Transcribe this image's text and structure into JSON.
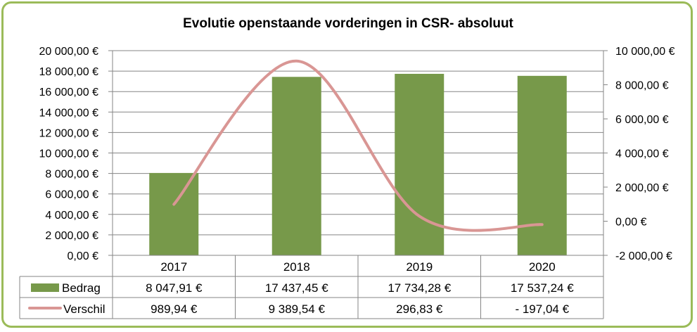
{
  "chart_data": {
    "type": "bar",
    "title": "Evolutie openstaande vorderingen in CSR- absoluut",
    "categories": [
      "2017",
      "2018",
      "2019",
      "2020"
    ],
    "series": [
      {
        "name": "Bedrag",
        "type": "bar",
        "axis": "left",
        "color": "#77994a",
        "values": [
          8047.91,
          17437.45,
          17734.28,
          17537.24
        ],
        "labels": [
          "8 047,91 €",
          "17 437,45 €",
          "17 734,28 €",
          "17 537,24 €"
        ]
      },
      {
        "name": "Verschil",
        "type": "line",
        "axis": "right",
        "color": "#d99694",
        "values": [
          989.94,
          9389.54,
          296.83,
          -197.04
        ],
        "labels": [
          "989,94 €",
          "9 389,54 €",
          "296,83 €",
          "- 197,04 €"
        ]
      }
    ],
    "y_left": {
      "range": [
        0,
        20000
      ],
      "ticks": [
        0,
        2000,
        4000,
        6000,
        8000,
        10000,
        12000,
        14000,
        16000,
        18000,
        20000
      ],
      "tick_labels": [
        "0,00 €",
        "2 000,00 €",
        "4 000,00 €",
        "6 000,00 €",
        "8 000,00 €",
        "10 000,00 €",
        "12 000,00 €",
        "14 000,00 €",
        "16 000,00 €",
        "18 000,00 €",
        "20 000,00 €"
      ]
    },
    "y_right": {
      "range": [
        -2000,
        10000
      ],
      "ticks": [
        -2000,
        0,
        2000,
        4000,
        6000,
        8000,
        10000
      ],
      "tick_labels": [
        "-2 000,00 €",
        "0,00 €",
        "2 000,00 €",
        "4 000,00 €",
        "6 000,00 €",
        "8 000,00 €",
        "10 000,00 €"
      ]
    },
    "grid": true,
    "legend": "data-table"
  }
}
